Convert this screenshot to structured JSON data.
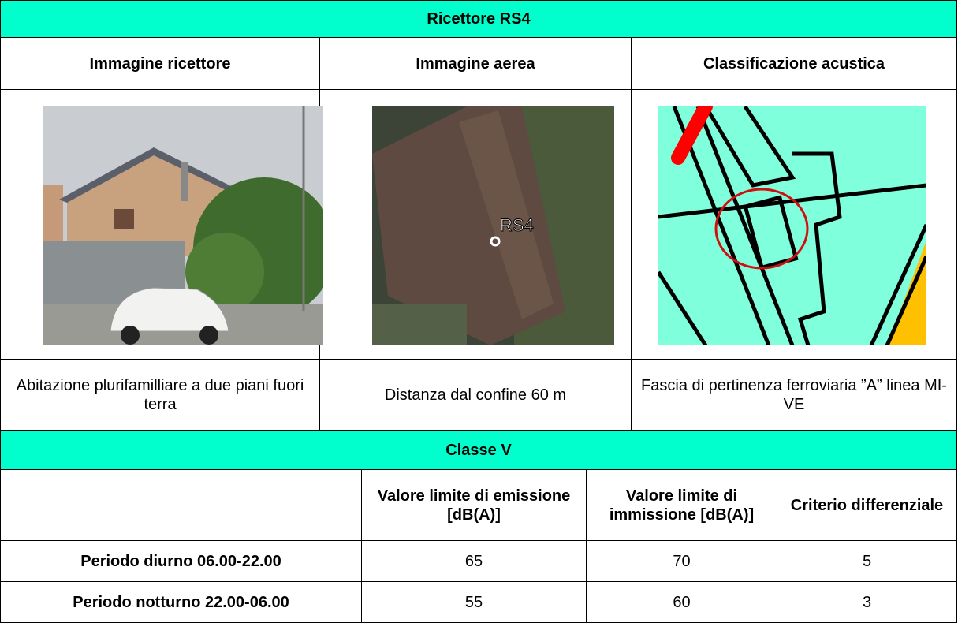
{
  "title": "Ricettore RS4",
  "columns": [
    {
      "header": "Immagine ricettore",
      "caption": "Abitazione plurifamilliare a due piani fuori terra"
    },
    {
      "header": "Immagine aerea",
      "caption": "Distanza dal confine 60 m"
    },
    {
      "header": "Classificazione acustica",
      "caption": "Fascia di pertinenza ferroviaria  ”A” linea MI-VE"
    }
  ],
  "aerial_label": "RS4",
  "class_table": {
    "title": "Classe V",
    "headers": [
      "Valore limite di emissione [dB(A)]",
      "Valore limite di immissione [dB(A)]",
      "Criterio differenziale"
    ],
    "rows": [
      [
        "Periodo diurno 06.00-22.00",
        "65",
        "70",
        "5"
      ],
      [
        "Periodo notturno 22.00-06.00",
        "55",
        "60",
        "3"
      ]
    ]
  }
}
